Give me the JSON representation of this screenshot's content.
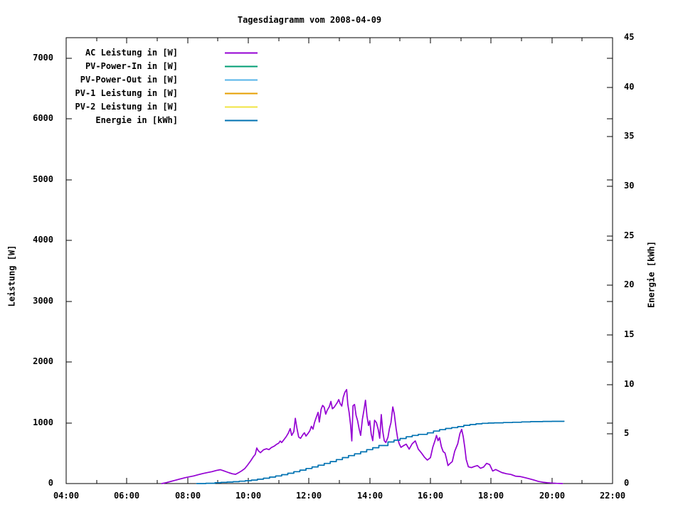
{
  "title": "Tagesdiagramm vom 2008-04-09",
  "axes": {
    "x": {
      "tick_labels": [
        "04:00",
        "06:00",
        "08:00",
        "10:00",
        "12:00",
        "14:00",
        "16:00",
        "18:00",
        "20:00",
        "22:00"
      ],
      "tick_hours": [
        4,
        6,
        8,
        10,
        12,
        14,
        16,
        18,
        20,
        22
      ],
      "minor_tick_hours": [
        5,
        7,
        9,
        11,
        13,
        15,
        17,
        19,
        21
      ]
    },
    "y_left": {
      "label": "Leistung [W]",
      "tick_labels": [
        "0",
        "1000",
        "2000",
        "3000",
        "4000",
        "5000",
        "6000",
        "7000"
      ],
      "tick_values": [
        0,
        1000,
        2000,
        3000,
        4000,
        5000,
        6000,
        7000
      ]
    },
    "y_right": {
      "label": "Energie [kWh]",
      "tick_labels": [
        "0",
        "5",
        "10",
        "15",
        "20",
        "25",
        "30",
        "35",
        "40",
        "45"
      ],
      "tick_values": [
        0,
        5,
        10,
        15,
        20,
        25,
        30,
        35,
        40,
        45
      ]
    }
  },
  "chart_data": {
    "type": "line",
    "title": "Tagesdiagramm vom 2008-04-09",
    "xlabel": "",
    "ylabel": "Leistung [W]",
    "y2label": "Energie [kWh]",
    "x_unit": "time HH:MM",
    "xrange_hours": [
      4,
      22
    ],
    "ylim_left": [
      0,
      7339
    ],
    "ylim_right": [
      0,
      45
    ],
    "grid": false,
    "legend_position": "top-left-inside",
    "series": [
      {
        "name": "AC Leistung in [W]",
        "color": "#9400d3",
        "axis": "left",
        "render": "line",
        "points": [
          [
            7.15,
            0
          ],
          [
            7.3,
            15
          ],
          [
            7.45,
            35
          ],
          [
            7.6,
            55
          ],
          [
            7.75,
            75
          ],
          [
            7.9,
            95
          ],
          [
            8.05,
            110
          ],
          [
            8.2,
            125
          ],
          [
            8.35,
            145
          ],
          [
            8.5,
            165
          ],
          [
            8.65,
            180
          ],
          [
            8.8,
            195
          ],
          [
            8.95,
            215
          ],
          [
            9.08,
            228
          ],
          [
            9.18,
            212
          ],
          [
            9.28,
            193
          ],
          [
            9.38,
            176
          ],
          [
            9.48,
            160
          ],
          [
            9.58,
            152
          ],
          [
            9.68,
            178
          ],
          [
            9.78,
            208
          ],
          [
            9.88,
            245
          ],
          [
            9.98,
            305
          ],
          [
            10.08,
            375
          ],
          [
            10.17,
            445
          ],
          [
            10.23,
            480
          ],
          [
            10.28,
            585
          ],
          [
            10.33,
            540
          ],
          [
            10.4,
            508
          ],
          [
            10.5,
            555
          ],
          [
            10.6,
            572
          ],
          [
            10.68,
            558
          ],
          [
            10.76,
            592
          ],
          [
            10.86,
            618
          ],
          [
            10.94,
            648
          ],
          [
            11.0,
            665
          ],
          [
            11.05,
            700
          ],
          [
            11.1,
            676
          ],
          [
            11.18,
            726
          ],
          [
            11.25,
            772
          ],
          [
            11.32,
            832
          ],
          [
            11.38,
            905
          ],
          [
            11.43,
            792
          ],
          [
            11.5,
            856
          ],
          [
            11.55,
            1075
          ],
          [
            11.6,
            915
          ],
          [
            11.66,
            766
          ],
          [
            11.72,
            745
          ],
          [
            11.8,
            806
          ],
          [
            11.85,
            836
          ],
          [
            11.9,
            782
          ],
          [
            11.97,
            826
          ],
          [
            12.03,
            872
          ],
          [
            12.08,
            942
          ],
          [
            12.13,
            896
          ],
          [
            12.18,
            1002
          ],
          [
            12.25,
            1106
          ],
          [
            12.3,
            1172
          ],
          [
            12.34,
            1012
          ],
          [
            12.4,
            1226
          ],
          [
            12.45,
            1286
          ],
          [
            12.5,
            1256
          ],
          [
            12.55,
            1142
          ],
          [
            12.6,
            1206
          ],
          [
            12.67,
            1266
          ],
          [
            12.72,
            1352
          ],
          [
            12.77,
            1232
          ],
          [
            12.83,
            1256
          ],
          [
            12.88,
            1296
          ],
          [
            12.93,
            1332
          ],
          [
            12.98,
            1382
          ],
          [
            13.03,
            1312
          ],
          [
            13.08,
            1276
          ],
          [
            13.13,
            1422
          ],
          [
            13.18,
            1502
          ],
          [
            13.24,
            1548
          ],
          [
            13.28,
            1302
          ],
          [
            13.32,
            1172
          ],
          [
            13.37,
            962
          ],
          [
            13.41,
            702
          ],
          [
            13.45,
            1282
          ],
          [
            13.5,
            1302
          ],
          [
            13.55,
            1122
          ],
          [
            13.6,
            1036
          ],
          [
            13.65,
            906
          ],
          [
            13.7,
            792
          ],
          [
            13.76,
            1062
          ],
          [
            13.81,
            1212
          ],
          [
            13.86,
            1372
          ],
          [
            13.91,
            1112
          ],
          [
            13.96,
            956
          ],
          [
            14.0,
            1032
          ],
          [
            14.05,
            812
          ],
          [
            14.1,
            706
          ],
          [
            14.16,
            1042
          ],
          [
            14.22,
            1002
          ],
          [
            14.28,
            892
          ],
          [
            14.33,
            746
          ],
          [
            14.38,
            1136
          ],
          [
            14.43,
            862
          ],
          [
            14.48,
            706
          ],
          [
            14.53,
            676
          ],
          [
            14.6,
            762
          ],
          [
            14.65,
            906
          ],
          [
            14.7,
            1002
          ],
          [
            14.76,
            1262
          ],
          [
            14.81,
            1146
          ],
          [
            14.87,
            902
          ],
          [
            14.92,
            746
          ],
          [
            14.97,
            656
          ],
          [
            15.03,
            596
          ],
          [
            15.12,
            626
          ],
          [
            15.2,
            648
          ],
          [
            15.3,
            566
          ],
          [
            15.4,
            656
          ],
          [
            15.5,
            702
          ],
          [
            15.6,
            566
          ],
          [
            15.7,
            506
          ],
          [
            15.8,
            436
          ],
          [
            15.9,
            386
          ],
          [
            16.0,
            426
          ],
          [
            16.08,
            602
          ],
          [
            16.15,
            706
          ],
          [
            16.2,
            792
          ],
          [
            16.25,
            706
          ],
          [
            16.3,
            756
          ],
          [
            16.36,
            606
          ],
          [
            16.42,
            526
          ],
          [
            16.48,
            502
          ],
          [
            16.53,
            406
          ],
          [
            16.58,
            296
          ],
          [
            16.65,
            332
          ],
          [
            16.72,
            362
          ],
          [
            16.8,
            532
          ],
          [
            16.9,
            656
          ],
          [
            16.97,
            822
          ],
          [
            17.03,
            892
          ],
          [
            17.08,
            772
          ],
          [
            17.13,
            602
          ],
          [
            17.18,
            396
          ],
          [
            17.25,
            276
          ],
          [
            17.35,
            262
          ],
          [
            17.45,
            282
          ],
          [
            17.55,
            296
          ],
          [
            17.65,
            252
          ],
          [
            17.75,
            272
          ],
          [
            17.85,
            332
          ],
          [
            17.95,
            312
          ],
          [
            18.05,
            206
          ],
          [
            18.15,
            232
          ],
          [
            18.25,
            206
          ],
          [
            18.35,
            182
          ],
          [
            18.5,
            162
          ],
          [
            18.65,
            150
          ],
          [
            18.8,
            122
          ],
          [
            18.95,
            116
          ],
          [
            19.1,
            98
          ],
          [
            19.25,
            80
          ],
          [
            19.4,
            60
          ],
          [
            19.55,
            36
          ],
          [
            19.7,
            22
          ],
          [
            19.85,
            14
          ],
          [
            20.0,
            8
          ],
          [
            20.15,
            3
          ],
          [
            20.35,
            0
          ]
        ]
      },
      {
        "name": "PV-Power-In in [W]",
        "color": "#009e73",
        "axis": "left",
        "render": "line",
        "points": []
      },
      {
        "name": "PV-Power-Out in [W]",
        "color": "#56b4e9",
        "axis": "left",
        "render": "line",
        "points": []
      },
      {
        "name": "PV-1 Leistung in [W]",
        "color": "#e69f00",
        "axis": "left",
        "render": "line",
        "points": []
      },
      {
        "name": "PV-2 Leistung in [W]",
        "color": "#f0e442",
        "axis": "left",
        "render": "line",
        "points": []
      },
      {
        "name": "Energie in [kWh]",
        "color": "#0072b2",
        "axis": "right",
        "render": "steps",
        "points": [
          [
            8.3,
            0
          ],
          [
            8.6,
            0.03
          ],
          [
            8.9,
            0.08
          ],
          [
            9.1,
            0.12
          ],
          [
            9.3,
            0.15
          ],
          [
            9.5,
            0.19
          ],
          [
            9.7,
            0.24
          ],
          [
            9.9,
            0.29
          ],
          [
            10.1,
            0.35
          ],
          [
            10.3,
            0.44
          ],
          [
            10.5,
            0.54
          ],
          [
            10.7,
            0.65
          ],
          [
            10.9,
            0.77
          ],
          [
            11.1,
            0.9
          ],
          [
            11.3,
            1.04
          ],
          [
            11.5,
            1.2
          ],
          [
            11.7,
            1.36
          ],
          [
            11.9,
            1.52
          ],
          [
            12.1,
            1.68
          ],
          [
            12.3,
            1.85
          ],
          [
            12.5,
            2.03
          ],
          [
            12.7,
            2.22
          ],
          [
            12.9,
            2.42
          ],
          [
            13.1,
            2.62
          ],
          [
            13.3,
            2.82
          ],
          [
            13.5,
            3.0
          ],
          [
            13.7,
            3.2
          ],
          [
            13.9,
            3.42
          ],
          [
            14.1,
            3.62
          ],
          [
            14.3,
            3.84
          ],
          [
            14.6,
            4.2
          ],
          [
            14.8,
            4.38
          ],
          [
            15.0,
            4.55
          ],
          [
            15.2,
            4.72
          ],
          [
            15.4,
            4.86
          ],
          [
            15.6,
            4.97
          ],
          [
            15.9,
            5.12
          ],
          [
            16.1,
            5.3
          ],
          [
            16.3,
            5.44
          ],
          [
            16.5,
            5.56
          ],
          [
            16.7,
            5.65
          ],
          [
            16.9,
            5.75
          ],
          [
            17.1,
            5.88
          ],
          [
            17.3,
            5.96
          ],
          [
            17.5,
            6.03
          ],
          [
            17.7,
            6.08
          ],
          [
            17.9,
            6.11
          ],
          [
            18.1,
            6.13
          ],
          [
            18.4,
            6.16
          ],
          [
            18.7,
            6.19
          ],
          [
            19.0,
            6.22
          ],
          [
            19.3,
            6.25
          ],
          [
            19.7,
            6.27
          ],
          [
            20.0,
            6.28
          ],
          [
            20.4,
            6.29
          ]
        ]
      }
    ]
  }
}
